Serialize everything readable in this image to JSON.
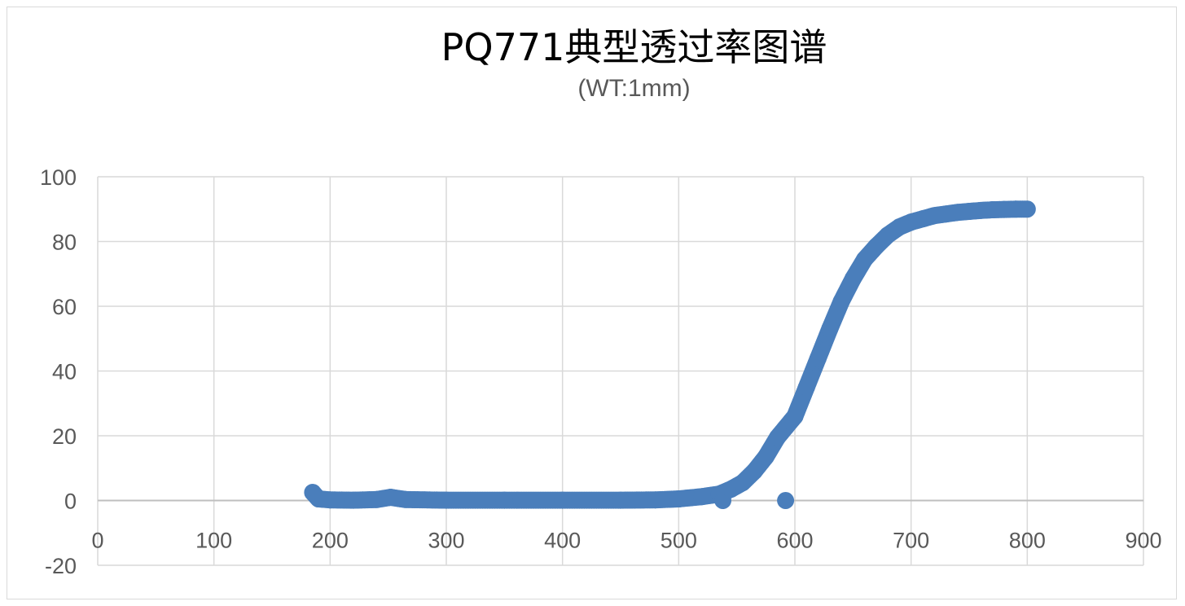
{
  "chart_data": {
    "type": "scatter",
    "title": "PQ771典型透过率图谱",
    "subtitle": "(WT:1mm)",
    "xlabel": "",
    "ylabel": "",
    "xlim": [
      0,
      900
    ],
    "ylim": [
      -20,
      100
    ],
    "x_ticks": [
      "0",
      "100",
      "200",
      "300",
      "400",
      "500",
      "600",
      "700",
      "800",
      "900"
    ],
    "y_ticks": [
      "100",
      "80",
      "60",
      "40",
      "20",
      "0",
      "-20"
    ],
    "grid": true,
    "series": [
      {
        "color": "#4a7ebb",
        "x": [
          185,
          190,
          200,
          220,
          240,
          252,
          265,
          300,
          350,
          400,
          450,
          480,
          500,
          520,
          535,
          538,
          545,
          555,
          565,
          575,
          585,
          592,
          600,
          610,
          620,
          630,
          640,
          650,
          660,
          670,
          680,
          690,
          700,
          710,
          720,
          730,
          740,
          750,
          760,
          770,
          780,
          790,
          800
        ],
        "y": [
          2.5,
          0.5,
          0.2,
          0.1,
          0.3,
          1.0,
          0.3,
          0.1,
          0.1,
          0.1,
          0.1,
          0.2,
          0.5,
          1.2,
          2.0,
          0.0,
          3.5,
          5.5,
          9.0,
          13.5,
          19.5,
          0.0,
          26.0,
          35.0,
          44.0,
          53.0,
          61.5,
          68.5,
          74.5,
          78.5,
          82.0,
          84.5,
          86.0,
          87.0,
          88.0,
          88.5,
          89.0,
          89.3,
          89.6,
          89.8,
          89.9,
          90.0,
          90.0
        ]
      }
    ]
  }
}
